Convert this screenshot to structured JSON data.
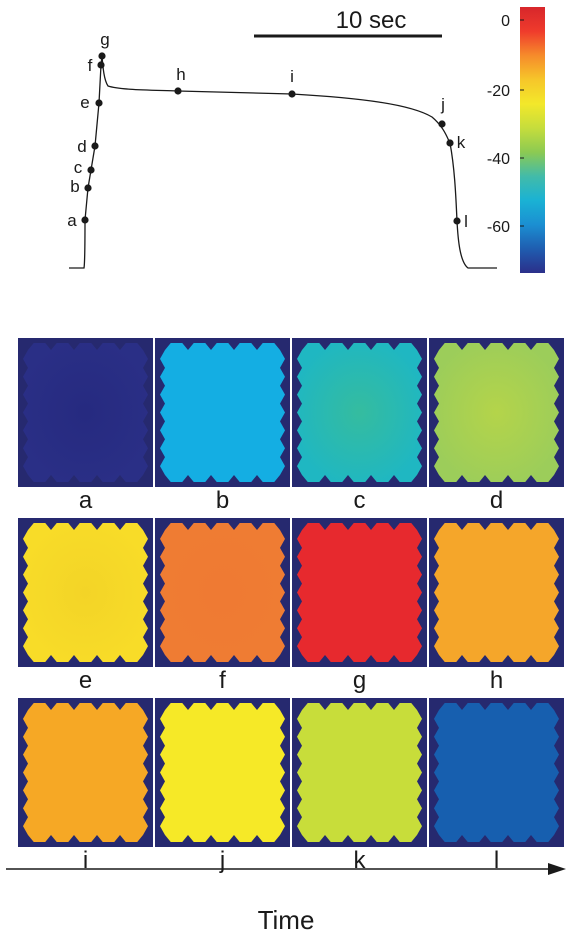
{
  "scale_bar": {
    "label": "10 sec"
  },
  "colorbar": {
    "tick_labels": [
      "0",
      "-20",
      "-40",
      "-60"
    ],
    "colors": [
      "#d7262b",
      "#ef3b2c",
      "#f68b2b",
      "#f6c62a",
      "#f3e82a",
      "#c6dd3c",
      "#8cca52",
      "#42bba9",
      "#1ab2d4",
      "#1b8fd2",
      "#1f5db0",
      "#2b2f8a"
    ]
  },
  "trace": {
    "points": [
      {
        "label": "a"
      },
      {
        "label": "b"
      },
      {
        "label": "c"
      },
      {
        "label": "d"
      },
      {
        "label": "e"
      },
      {
        "label": "f"
      },
      {
        "label": "g"
      },
      {
        "label": "h"
      },
      {
        "label": "i"
      },
      {
        "label": "j"
      },
      {
        "label": "k"
      },
      {
        "label": "l"
      }
    ]
  },
  "frames": [
    {
      "label": "a",
      "fill": "#2a2f86",
      "center": "#262a80"
    },
    {
      "label": "b",
      "fill": "#14aee3",
      "center": "#14aee3"
    },
    {
      "label": "c",
      "fill": "#1fb7c2",
      "center": "#35bc9f"
    },
    {
      "label": "d",
      "fill": "#9ccd5a",
      "center": "#b4d44a"
    },
    {
      "label": "e",
      "fill": "#f8dc28",
      "center": "#f3d427"
    },
    {
      "label": "f",
      "fill": "#ef7c33",
      "center": "#ef7a33"
    },
    {
      "label": "g",
      "fill": "#e7292e",
      "center": "#e7292e"
    },
    {
      "label": "h",
      "fill": "#f5a62a",
      "center": "#f5a62a"
    },
    {
      "label": "i",
      "fill": "#f6a825",
      "center": "#f6a825"
    },
    {
      "label": "j",
      "fill": "#f6e927",
      "center": "#f6e927"
    },
    {
      "label": "k",
      "fill": "#c8dd3a",
      "center": "#c8dd3a"
    },
    {
      "label": "l",
      "fill": "#175faf",
      "center": "#175faf"
    }
  ],
  "frame_border_color": "#26296f",
  "time_axis": {
    "label": "Time"
  }
}
